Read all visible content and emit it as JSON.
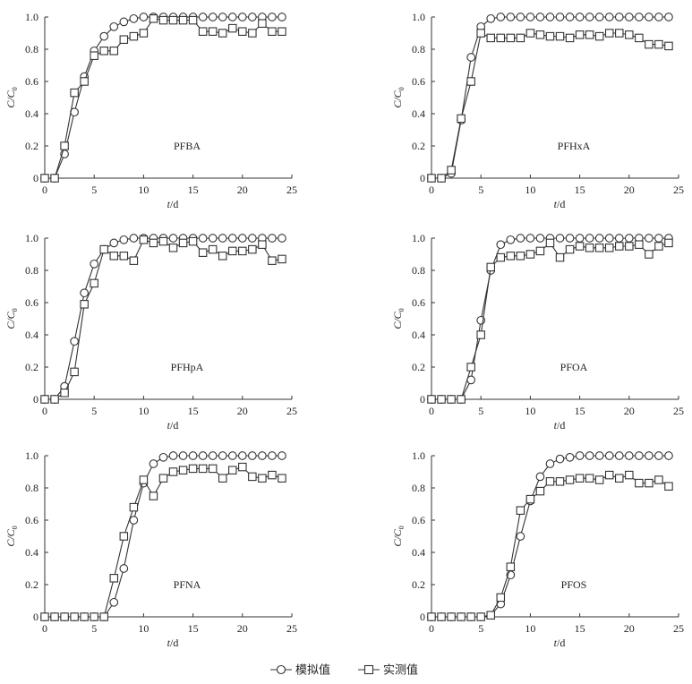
{
  "legend": {
    "simulated": "模拟值",
    "measured": "实测值"
  },
  "style": {
    "line_color": "#333333",
    "marker_fill": "#ffffff"
  },
  "chart_data": [
    {
      "type": "line",
      "label": "PFBA",
      "xlabel": "t/d",
      "ylabel": "C/C0",
      "xlim": [
        0,
        25
      ],
      "ylim": [
        0,
        1.0
      ],
      "xticks": [
        0,
        5,
        10,
        15,
        20,
        25
      ],
      "yticks": [
        0,
        0.2,
        0.4,
        0.6,
        0.8,
        1.0
      ],
      "series": [
        {
          "name": "模拟值",
          "marker": "circle",
          "x": [
            0,
            1,
            2,
            3,
            4,
            5,
            6,
            7,
            8,
            9,
            10,
            11,
            12,
            13,
            14,
            15,
            16,
            17,
            18,
            19,
            20,
            21,
            22,
            23,
            24
          ],
          "y": [
            0,
            0,
            0.15,
            0.41,
            0.63,
            0.79,
            0.88,
            0.94,
            0.97,
            0.99,
            1.0,
            1.0,
            1.0,
            1.0,
            1.0,
            1.0,
            1.0,
            1.0,
            1.0,
            1.0,
            1.0,
            1.0,
            1.0,
            1.0,
            1.0
          ]
        },
        {
          "name": "实测值",
          "marker": "square",
          "x": [
            0,
            1,
            2,
            3,
            4,
            5,
            6,
            7,
            8,
            9,
            10,
            11,
            12,
            13,
            14,
            15,
            16,
            17,
            18,
            19,
            20,
            21,
            22,
            23,
            24
          ],
          "y": [
            0,
            0,
            0.2,
            0.53,
            0.6,
            0.76,
            0.79,
            0.79,
            0.86,
            0.88,
            0.9,
            0.99,
            0.98,
            0.98,
            0.98,
            0.98,
            0.91,
            0.91,
            0.9,
            0.93,
            0.91,
            0.9,
            0.96,
            0.91,
            0.91
          ]
        }
      ]
    },
    {
      "type": "line",
      "label": "PFHxA",
      "xlabel": "t/d",
      "ylabel": "C/C0",
      "xlim": [
        0,
        25
      ],
      "ylim": [
        0,
        1.0
      ],
      "xticks": [
        0,
        5,
        10,
        15,
        20,
        25
      ],
      "yticks": [
        0,
        0.2,
        0.4,
        0.6,
        0.8,
        1.0
      ],
      "series": [
        {
          "name": "模拟值",
          "marker": "circle",
          "x": [
            0,
            1,
            2,
            3,
            4,
            5,
            6,
            7,
            8,
            9,
            10,
            11,
            12,
            13,
            14,
            15,
            16,
            17,
            18,
            19,
            20,
            21,
            22,
            23,
            24
          ],
          "y": [
            0,
            0,
            0.03,
            0.36,
            0.75,
            0.94,
            0.99,
            1.0,
            1.0,
            1.0,
            1.0,
            1.0,
            1.0,
            1.0,
            1.0,
            1.0,
            1.0,
            1.0,
            1.0,
            1.0,
            1.0,
            1.0,
            1.0,
            1.0,
            1.0
          ]
        },
        {
          "name": "实测值",
          "marker": "square",
          "x": [
            0,
            1,
            2,
            3,
            4,
            5,
            6,
            7,
            8,
            9,
            10,
            11,
            12,
            13,
            14,
            15,
            16,
            17,
            18,
            19,
            20,
            21,
            22,
            23,
            24
          ],
          "y": [
            0,
            0,
            0.05,
            0.37,
            0.6,
            0.9,
            0.87,
            0.87,
            0.87,
            0.87,
            0.9,
            0.89,
            0.88,
            0.88,
            0.87,
            0.89,
            0.89,
            0.88,
            0.9,
            0.9,
            0.89,
            0.87,
            0.83,
            0.83,
            0.82
          ]
        }
      ]
    },
    {
      "type": "line",
      "label": "PFHpA",
      "xlabel": "t/d",
      "ylabel": "C/C0",
      "xlim": [
        0,
        25
      ],
      "ylim": [
        0,
        1.0
      ],
      "xticks": [
        0,
        5,
        10,
        15,
        20,
        25
      ],
      "yticks": [
        0,
        0.2,
        0.4,
        0.6,
        0.8,
        1.0
      ],
      "series": [
        {
          "name": "模拟值",
          "marker": "circle",
          "x": [
            0,
            1,
            2,
            3,
            4,
            5,
            6,
            7,
            8,
            9,
            10,
            11,
            12,
            13,
            14,
            15,
            16,
            17,
            18,
            19,
            20,
            21,
            22,
            23,
            24
          ],
          "y": [
            0,
            0,
            0.08,
            0.36,
            0.66,
            0.84,
            0.93,
            0.97,
            0.99,
            1.0,
            1.0,
            1.0,
            1.0,
            1.0,
            1.0,
            1.0,
            1.0,
            1.0,
            1.0,
            1.0,
            1.0,
            1.0,
            1.0,
            1.0,
            1.0
          ]
        },
        {
          "name": "实测值",
          "marker": "square",
          "x": [
            0,
            1,
            2,
            3,
            4,
            5,
            6,
            7,
            8,
            9,
            10,
            11,
            12,
            13,
            14,
            15,
            16,
            17,
            18,
            19,
            20,
            21,
            22,
            23,
            24
          ],
          "y": [
            0,
            0,
            0.04,
            0.17,
            0.59,
            0.72,
            0.93,
            0.89,
            0.89,
            0.86,
            0.99,
            0.97,
            0.98,
            0.94,
            0.97,
            0.98,
            0.91,
            0.93,
            0.89,
            0.92,
            0.92,
            0.93,
            0.96,
            0.86,
            0.87
          ]
        }
      ]
    },
    {
      "type": "line",
      "label": "PFOA",
      "xlabel": "t/d",
      "ylabel": "C/C0",
      "xlim": [
        0,
        25
      ],
      "ylim": [
        0,
        1.0
      ],
      "xticks": [
        0,
        5,
        10,
        15,
        20,
        25
      ],
      "yticks": [
        0,
        0.2,
        0.4,
        0.6,
        0.8,
        1.0
      ],
      "series": [
        {
          "name": "模拟值",
          "marker": "circle",
          "x": [
            0,
            1,
            2,
            3,
            4,
            5,
            6,
            7,
            8,
            9,
            10,
            11,
            12,
            13,
            14,
            15,
            16,
            17,
            18,
            19,
            20,
            21,
            22,
            23,
            24
          ],
          "y": [
            0,
            0,
            0,
            0,
            0.12,
            0.49,
            0.8,
            0.96,
            0.99,
            1.0,
            1.0,
            1.0,
            1.0,
            1.0,
            1.0,
            1.0,
            1.0,
            1.0,
            1.0,
            1.0,
            1.0,
            1.0,
            1.0,
            1.0,
            1.0
          ]
        },
        {
          "name": "实测值",
          "marker": "square",
          "x": [
            0,
            1,
            2,
            3,
            4,
            5,
            6,
            7,
            8,
            9,
            10,
            11,
            12,
            13,
            14,
            15,
            16,
            17,
            18,
            19,
            20,
            21,
            22,
            23,
            24
          ],
          "y": [
            0,
            0,
            0,
            0,
            0.2,
            0.4,
            0.82,
            0.88,
            0.89,
            0.89,
            0.9,
            0.92,
            0.97,
            0.88,
            0.93,
            0.95,
            0.94,
            0.94,
            0.94,
            0.95,
            0.95,
            0.96,
            0.9,
            0.95,
            0.97
          ]
        }
      ]
    },
    {
      "type": "line",
      "label": "PFNA",
      "xlabel": "t/d",
      "ylabel": "C/C0",
      "xlim": [
        0,
        25
      ],
      "ylim": [
        0,
        1.0
      ],
      "xticks": [
        0,
        5,
        10,
        15,
        20,
        25
      ],
      "yticks": [
        0,
        0.2,
        0.4,
        0.6,
        0.8,
        1.0
      ],
      "series": [
        {
          "name": "模拟值",
          "marker": "circle",
          "x": [
            0,
            1,
            2,
            3,
            4,
            5,
            6,
            7,
            8,
            9,
            10,
            11,
            12,
            13,
            14,
            15,
            16,
            17,
            18,
            19,
            20,
            21,
            22,
            23,
            24
          ],
          "y": [
            0,
            0,
            0,
            0,
            0,
            0,
            0,
            0.09,
            0.3,
            0.6,
            0.83,
            0.95,
            0.99,
            1.0,
            1.0,
            1.0,
            1.0,
            1.0,
            1.0,
            1.0,
            1.0,
            1.0,
            1.0,
            1.0,
            1.0
          ]
        },
        {
          "name": "实测值",
          "marker": "square",
          "x": [
            0,
            1,
            2,
            3,
            4,
            5,
            6,
            7,
            8,
            9,
            10,
            11,
            12,
            13,
            14,
            15,
            16,
            17,
            18,
            19,
            20,
            21,
            22,
            23,
            24
          ],
          "y": [
            0,
            0,
            0,
            0,
            0,
            0,
            0,
            0.24,
            0.5,
            0.68,
            0.85,
            0.75,
            0.86,
            0.9,
            0.91,
            0.92,
            0.92,
            0.92,
            0.86,
            0.91,
            0.93,
            0.87,
            0.86,
            0.88,
            0.86
          ]
        }
      ]
    },
    {
      "type": "line",
      "label": "PFOS",
      "xlabel": "t/d",
      "ylabel": "C/C0",
      "xlim": [
        0,
        25
      ],
      "ylim": [
        0,
        1.0
      ],
      "xticks": [
        0,
        5,
        10,
        15,
        20,
        25
      ],
      "yticks": [
        0,
        0.2,
        0.4,
        0.6,
        0.8,
        1.0
      ],
      "series": [
        {
          "name": "模拟值",
          "marker": "circle",
          "x": [
            0,
            1,
            2,
            3,
            4,
            5,
            6,
            7,
            8,
            9,
            10,
            11,
            12,
            13,
            14,
            15,
            16,
            17,
            18,
            19,
            20,
            21,
            22,
            23,
            24
          ],
          "y": [
            0,
            0,
            0,
            0,
            0,
            0,
            0.01,
            0.08,
            0.26,
            0.5,
            0.72,
            0.87,
            0.95,
            0.98,
            0.99,
            1.0,
            1.0,
            1.0,
            1.0,
            1.0,
            1.0,
            1.0,
            1.0,
            1.0,
            1.0
          ]
        },
        {
          "name": "实测值",
          "marker": "square",
          "x": [
            0,
            1,
            2,
            3,
            4,
            5,
            6,
            7,
            8,
            9,
            10,
            11,
            12,
            13,
            14,
            15,
            16,
            17,
            18,
            19,
            20,
            21,
            22,
            23,
            24
          ],
          "y": [
            0,
            0,
            0,
            0,
            0,
            0,
            0.01,
            0.12,
            0.31,
            0.66,
            0.73,
            0.78,
            0.84,
            0.84,
            0.85,
            0.86,
            0.86,
            0.85,
            0.88,
            0.86,
            0.88,
            0.83,
            0.83,
            0.85,
            0.81
          ]
        }
      ]
    }
  ]
}
